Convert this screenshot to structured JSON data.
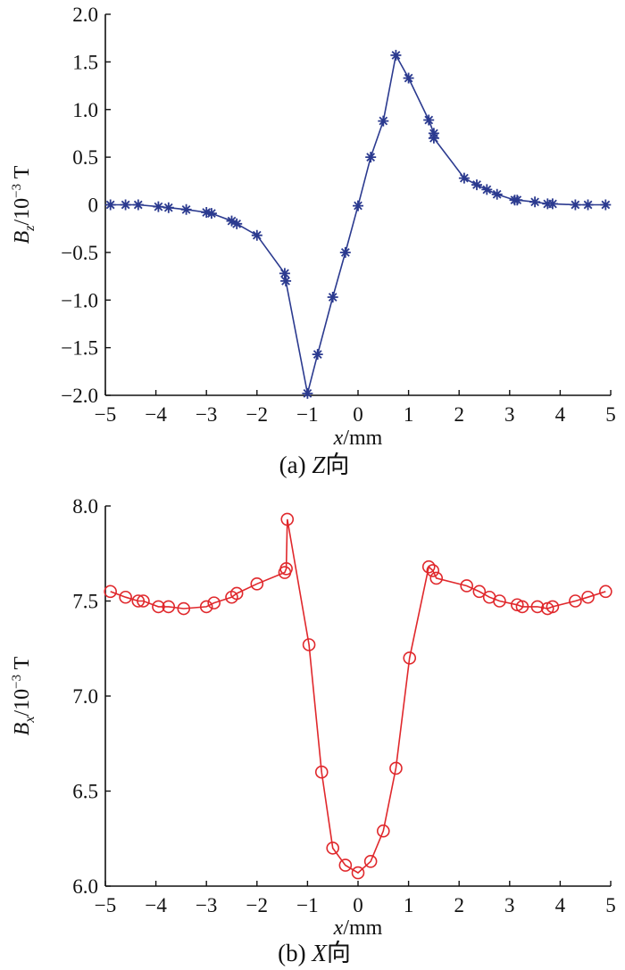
{
  "chart_data": [
    {
      "type": "line",
      "caption": "(a)  Z向",
      "caption_parts": {
        "prefix": "(a)  ",
        "axis": "Z",
        "suffix": "向"
      },
      "xlabel": {
        "var": "x",
        "rest": "/mm"
      },
      "ylabel": {
        "var": "B",
        "sub": "z",
        "rest": "/10",
        "sup": "−3",
        "unit": " T"
      },
      "xlim": [
        -5,
        5
      ],
      "ylim": [
        -2.0,
        2.0
      ],
      "x_ticks": [
        -5,
        -4,
        -3,
        -2,
        -1,
        0,
        1,
        2,
        3,
        4,
        5
      ],
      "x_tick_labels": [
        "−5",
        "−4",
        "−3",
        "−2",
        "−1",
        "0",
        "1",
        "2",
        "3",
        "4",
        "5"
      ],
      "y_ticks": [
        -2.0,
        -1.5,
        -1.0,
        -0.5,
        0,
        0.5,
        1.0,
        1.5,
        2.0
      ],
      "y_tick_labels": [
        "−2.0",
        "−1.5",
        "−1.0",
        "−0.5",
        "0",
        "0.5",
        "1.0",
        "1.5",
        "2.0"
      ],
      "grid": false,
      "marker": "asterisk",
      "color": "#2b3a8f",
      "series": [
        {
          "x": [
            -4.9,
            -4.6,
            -4.35,
            -3.95,
            -3.75,
            -3.4,
            -3.0,
            -2.9,
            -2.5,
            -2.4,
            -2.0,
            -1.45,
            -1.43,
            -1.0,
            -0.8,
            -0.5,
            -0.25,
            0.0,
            0.25,
            0.5,
            0.75,
            1.0,
            1.4,
            1.5,
            1.5,
            2.1,
            2.35,
            2.55,
            2.75,
            3.1,
            3.15,
            3.5,
            3.75,
            3.85,
            4.3,
            4.55,
            4.9
          ],
          "y": [
            0.0,
            0.0,
            0.0,
            -0.02,
            -0.03,
            -0.05,
            -0.08,
            -0.09,
            -0.17,
            -0.2,
            -0.32,
            -0.72,
            -0.8,
            -1.98,
            -1.57,
            -0.97,
            -0.5,
            -0.01,
            0.5,
            0.88,
            1.57,
            1.33,
            0.89,
            0.75,
            0.7,
            0.28,
            0.21,
            0.16,
            0.11,
            0.05,
            0.05,
            0.03,
            0.01,
            0.01,
            0.0,
            0.0,
            0.0
          ]
        }
      ]
    },
    {
      "type": "line",
      "caption": "(b)  X向",
      "caption_parts": {
        "prefix": "(b)  ",
        "axis": "X",
        "suffix": "向"
      },
      "xlabel": {
        "var": "x",
        "rest": "/mm"
      },
      "ylabel": {
        "var": "B",
        "sub": "x",
        "rest": "/10",
        "sup": "−3",
        "unit": " T"
      },
      "xlim": [
        -5,
        5
      ],
      "ylim": [
        6.0,
        8.0
      ],
      "x_ticks": [
        -5,
        -4,
        -3,
        -2,
        -1,
        0,
        1,
        2,
        3,
        4,
        5
      ],
      "x_tick_labels": [
        "−5",
        "−4",
        "−3",
        "−2",
        "−1",
        "0",
        "1",
        "2",
        "3",
        "4",
        "5"
      ],
      "y_ticks": [
        6.0,
        6.5,
        7.0,
        7.5,
        8.0
      ],
      "y_tick_labels": [
        "6.0",
        "6.5",
        "7.0",
        "7.5",
        "8.0"
      ],
      "grid": false,
      "marker": "circle",
      "color": "#e0282c",
      "series": [
        {
          "x": [
            -4.9,
            -4.6,
            -4.35,
            -4.25,
            -3.95,
            -3.75,
            -3.45,
            -3.0,
            -2.85,
            -2.5,
            -2.4,
            -2.0,
            -1.45,
            -1.42,
            -1.4,
            -0.97,
            -0.72,
            -0.5,
            -0.25,
            0.0,
            0.25,
            0.5,
            0.75,
            1.02,
            1.4,
            1.48,
            1.55,
            2.15,
            2.4,
            2.6,
            2.8,
            3.15,
            3.25,
            3.55,
            3.75,
            3.85,
            4.3,
            4.55,
            4.9
          ],
          "y": [
            7.55,
            7.52,
            7.5,
            7.5,
            7.47,
            7.47,
            7.46,
            7.47,
            7.49,
            7.52,
            7.54,
            7.59,
            7.65,
            7.67,
            7.93,
            7.27,
            6.6,
            6.2,
            6.11,
            6.07,
            6.13,
            6.29,
            6.62,
            7.2,
            7.68,
            7.66,
            7.62,
            7.58,
            7.55,
            7.52,
            7.5,
            7.48,
            7.47,
            7.47,
            7.46,
            7.47,
            7.5,
            7.52,
            7.55
          ]
        }
      ]
    }
  ]
}
